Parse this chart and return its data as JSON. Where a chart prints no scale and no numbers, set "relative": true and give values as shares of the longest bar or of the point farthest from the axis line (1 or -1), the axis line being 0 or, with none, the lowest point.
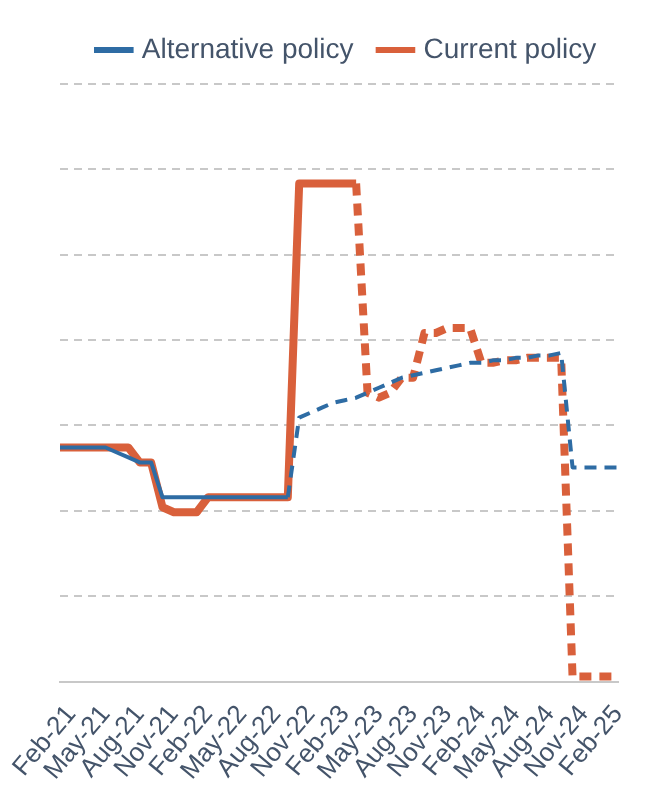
{
  "chart_data": {
    "type": "line",
    "relative": true,
    "legend": "top",
    "grid": "y",
    "marker": "none",
    "categories": [
      null,
      "Feb-21",
      null,
      null,
      "May-21",
      null,
      null,
      "Aug-21",
      null,
      null,
      "Nov-21",
      null,
      null,
      "Feb-22",
      null,
      null,
      "May-22",
      null,
      null,
      "Aug-22",
      null,
      null,
      "Nov-22",
      null,
      null,
      "Feb-23",
      null,
      null,
      "May-23",
      null,
      null,
      "Aug-23",
      null,
      null,
      "Nov-23",
      null,
      null,
      "Feb-24",
      null,
      null,
      "May-24",
      null,
      null,
      "Aug-24",
      null,
      null,
      "Nov-24",
      null,
      null,
      "Feb-25"
    ],
    "series": [
      {
        "name": "Alternative policy",
        "color": "#2e6ca4",
        "line_style": "solid",
        "values": [
          0.47,
          0.47,
          0.47,
          0.47,
          0.47,
          0.46,
          0.45,
          0.44,
          0.44,
          0.37,
          0.37,
          0.37,
          0.37,
          0.37,
          0.37,
          0.37,
          0.37,
          0.37,
          0.37,
          0.37,
          0.37,
          null,
          null,
          null,
          null,
          null,
          null,
          null,
          null,
          null,
          null,
          null,
          null,
          null,
          null,
          null,
          null,
          null,
          null,
          null,
          null,
          null,
          null,
          null,
          null,
          null,
          null,
          null,
          null,
          null
        ]
      },
      {
        "name": "Current policy",
        "color": "#d9603b",
        "line_style": "solid",
        "values": [
          0.47,
          0.47,
          0.47,
          0.47,
          0.47,
          0.47,
          0.47,
          0.44,
          0.44,
          0.35,
          0.34,
          0.34,
          0.34,
          0.37,
          0.37,
          0.37,
          0.37,
          0.37,
          0.37,
          0.37,
          0.37,
          1,
          1,
          1,
          1,
          1,
          1,
          null,
          null,
          null,
          null,
          null,
          null,
          null,
          null,
          null,
          null,
          null,
          null,
          null,
          null,
          null,
          null,
          null,
          null,
          null,
          null,
          null,
          null,
          null
        ]
      },
      {
        "color": "#2e6ca4",
        "line_style": "dashed",
        "values": [
          null,
          null,
          null,
          null,
          null,
          null,
          null,
          null,
          null,
          null,
          null,
          null,
          null,
          null,
          null,
          null,
          null,
          null,
          null,
          null,
          0.37,
          0.53,
          0.54,
          0.55,
          0.56,
          0.565,
          0.57,
          0.58,
          0.59,
          0.6,
          0.61,
          0.615,
          0.62,
          0.625,
          0.63,
          0.635,
          0.64,
          0.64,
          0.645,
          0.645,
          0.65,
          0.65,
          0.655,
          0.655,
          0.66,
          0.43,
          0.43,
          0.43,
          0.43,
          0.43
        ]
      },
      {
        "color": "#d9603b",
        "line_style": "dashed",
        "values": [
          null,
          null,
          null,
          null,
          null,
          null,
          null,
          null,
          null,
          null,
          null,
          null,
          null,
          null,
          null,
          null,
          null,
          null,
          null,
          null,
          null,
          null,
          null,
          null,
          null,
          null,
          1,
          0.58,
          0.57,
          0.58,
          0.61,
          0.61,
          0.7,
          0.7,
          0.71,
          0.71,
          0.71,
          0.64,
          0.64,
          0.645,
          0.645,
          0.65,
          0.65,
          0.65,
          0.65,
          0.01,
          0.01,
          0.01,
          0.01,
          0.01
        ]
      }
    ]
  }
}
